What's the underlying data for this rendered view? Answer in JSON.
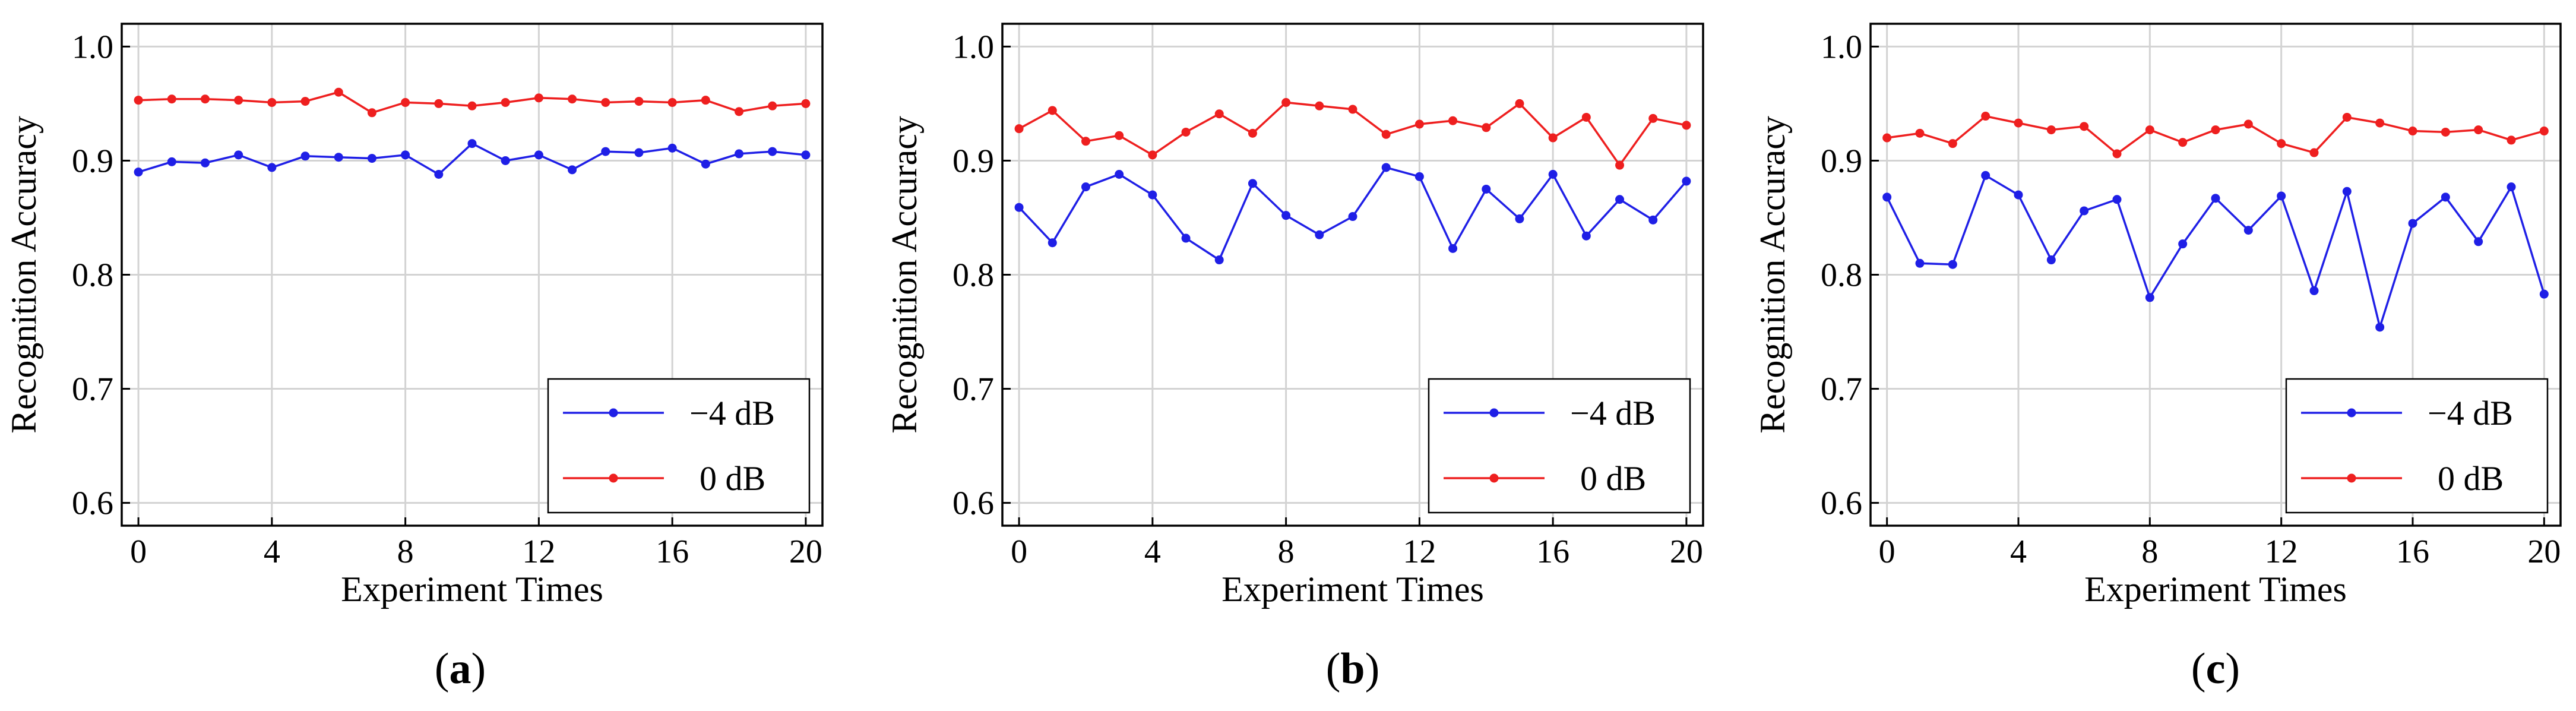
{
  "figure": {
    "captions": [
      "(a)",
      "(b)",
      "(c)"
    ],
    "colors": {
      "blue": "#1f1fe6",
      "red": "#ee1f1f",
      "grid": "#d3d3d3",
      "axis": "#000000"
    }
  },
  "chart_data": [
    {
      "type": "line",
      "panel": "(a)",
      "title": "",
      "xlabel": "Experiment Times",
      "ylabel": "Recognition Accuracy",
      "xlim": [
        -0.5,
        20.5
      ],
      "ylim": [
        0.58,
        1.02
      ],
      "xticks": [
        0,
        4,
        8,
        12,
        16,
        20
      ],
      "yticks": [
        0.6,
        0.7,
        0.8,
        0.9,
        1.0
      ],
      "xtick_labels": [
        "0",
        "4",
        "8",
        "12",
        "16",
        "20"
      ],
      "ytick_labels": [
        "0.6",
        "0.7",
        "0.8",
        "0.9",
        "1.0"
      ],
      "grid": true,
      "legend_position": "lower-right",
      "x": [
        0,
        1,
        2,
        3,
        4,
        5,
        6,
        7,
        8,
        9,
        10,
        11,
        12,
        13,
        14,
        15,
        16,
        17,
        18,
        19,
        20
      ],
      "series": [
        {
          "name": "−4 dB",
          "color": "#1f1fe6",
          "values": [
            0.89,
            0.899,
            0.898,
            0.905,
            0.894,
            0.904,
            0.903,
            0.902,
            0.905,
            0.888,
            0.915,
            0.9,
            0.905,
            0.892,
            0.908,
            0.907,
            0.911,
            0.897,
            0.906,
            0.908,
            0.905
          ]
        },
        {
          "name": "0 dB",
          "color": "#ee1f1f",
          "values": [
            0.953,
            0.954,
            0.954,
            0.953,
            0.951,
            0.952,
            0.96,
            0.942,
            0.951,
            0.95,
            0.948,
            0.951,
            0.955,
            0.954,
            0.951,
            0.952,
            0.951,
            0.953,
            0.943,
            0.948,
            0.95
          ]
        }
      ]
    },
    {
      "type": "line",
      "panel": "(b)",
      "title": "",
      "xlabel": "Experiment Times",
      "ylabel": "Recognition Accuracy",
      "xlim": [
        -0.5,
        20.5
      ],
      "ylim": [
        0.58,
        1.02
      ],
      "xticks": [
        0,
        4,
        8,
        12,
        16,
        20
      ],
      "yticks": [
        0.6,
        0.7,
        0.8,
        0.9,
        1.0
      ],
      "xtick_labels": [
        "0",
        "4",
        "8",
        "12",
        "16",
        "20"
      ],
      "ytick_labels": [
        "0.6",
        "0.7",
        "0.8",
        "0.9",
        "1.0"
      ],
      "grid": true,
      "legend_position": "lower-right",
      "x": [
        0,
        1,
        2,
        3,
        4,
        5,
        6,
        7,
        8,
        9,
        10,
        11,
        12,
        13,
        14,
        15,
        16,
        17,
        18,
        19,
        20
      ],
      "series": [
        {
          "name": "−4 dB",
          "color": "#1f1fe6",
          "values": [
            0.859,
            0.828,
            0.877,
            0.888,
            0.87,
            0.832,
            0.813,
            0.88,
            0.852,
            0.835,
            0.851,
            0.894,
            0.886,
            0.823,
            0.875,
            0.849,
            0.888,
            0.834,
            0.866,
            0.848,
            0.882
          ]
        },
        {
          "name": "0 dB",
          "color": "#ee1f1f",
          "values": [
            0.928,
            0.944,
            0.917,
            0.922,
            0.905,
            0.925,
            0.941,
            0.924,
            0.951,
            0.948,
            0.945,
            0.923,
            0.932,
            0.935,
            0.929,
            0.95,
            0.92,
            0.938,
            0.896,
            0.937,
            0.931
          ]
        }
      ]
    },
    {
      "type": "line",
      "panel": "(c)",
      "title": "",
      "xlabel": "Experiment Times",
      "ylabel": "Recognition Accuracy",
      "xlim": [
        -0.5,
        20.5
      ],
      "ylim": [
        0.58,
        1.02
      ],
      "xticks": [
        0,
        4,
        8,
        12,
        16,
        20
      ],
      "yticks": [
        0.6,
        0.7,
        0.8,
        0.9,
        1.0
      ],
      "xtick_labels": [
        "0",
        "4",
        "8",
        "12",
        "16",
        "20"
      ],
      "ytick_labels": [
        "0.6",
        "0.7",
        "0.8",
        "0.9",
        "1.0"
      ],
      "grid": true,
      "legend_position": "lower-right",
      "x": [
        0,
        1,
        2,
        3,
        4,
        5,
        6,
        7,
        8,
        9,
        10,
        11,
        12,
        13,
        14,
        15,
        16,
        17,
        18,
        19,
        20
      ],
      "series": [
        {
          "name": "−4 dB",
          "color": "#1f1fe6",
          "values": [
            0.868,
            0.81,
            0.809,
            0.887,
            0.87,
            0.813,
            0.856,
            0.866,
            0.78,
            0.827,
            0.867,
            0.839,
            0.869,
            0.786,
            0.873,
            0.754,
            0.845,
            0.868,
            0.829,
            0.877,
            0.783
          ]
        },
        {
          "name": "0 dB",
          "color": "#ee1f1f",
          "values": [
            0.92,
            0.924,
            0.915,
            0.939,
            0.933,
            0.927,
            0.93,
            0.906,
            0.927,
            0.916,
            0.927,
            0.932,
            0.915,
            0.907,
            0.938,
            0.933,
            0.926,
            0.925,
            0.927,
            0.918,
            0.926
          ]
        }
      ]
    }
  ]
}
